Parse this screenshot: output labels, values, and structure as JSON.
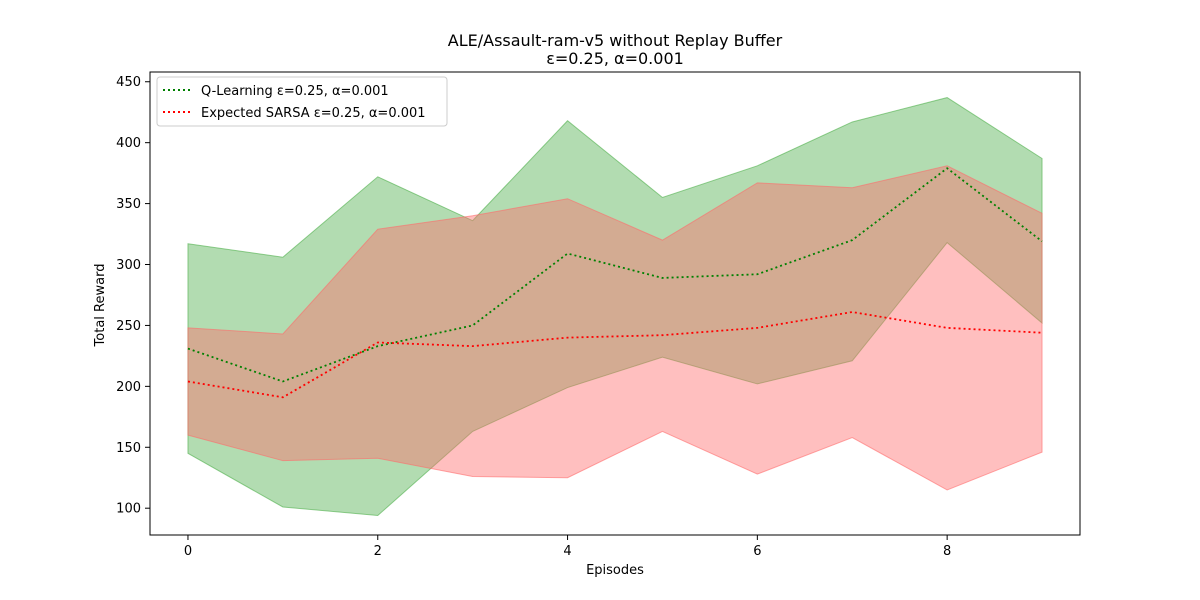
{
  "chart_data": {
    "type": "line",
    "title": "ALE/Assault-ram-v5 without Replay Buffer",
    "subtitle": "ε=0.25, α=0.001",
    "xlabel": "Episodes",
    "ylabel": "Total Reward",
    "xlim": [
      -0.4,
      9.4
    ],
    "ylim": [
      78,
      458
    ],
    "xticks": [
      0,
      2,
      4,
      6,
      8
    ],
    "yticks": [
      100,
      150,
      200,
      250,
      300,
      350,
      400,
      450
    ],
    "grid": false,
    "legend_position": "top-left",
    "x": [
      0,
      1,
      2,
      3,
      4,
      5,
      6,
      7,
      8,
      9
    ],
    "series": [
      {
        "name": "Q-Learning ε=0.25, α=0.001",
        "color": "#008000",
        "fill_color": "#4daf4a",
        "values": [
          231,
          204,
          233,
          250,
          309,
          289,
          292,
          320,
          379,
          319
        ],
        "upper": [
          317,
          306,
          372,
          336,
          418,
          355,
          381,
          417,
          437,
          387
        ],
        "lower": [
          145,
          101,
          94,
          163,
          199,
          224,
          202,
          221,
          318,
          252
        ]
      },
      {
        "name": "Expected SARSA ε=0.25, α=0.001",
        "color": "#ff0000",
        "fill_color": "#ff6b6b",
        "values": [
          204,
          191,
          236,
          233,
          240,
          242,
          248,
          261,
          248,
          244
        ],
        "upper": [
          248,
          243,
          329,
          340,
          354,
          320,
          367,
          363,
          381,
          342
        ],
        "lower": [
          160,
          139,
          141,
          126,
          125,
          163,
          128,
          158,
          115,
          146
        ]
      }
    ]
  }
}
